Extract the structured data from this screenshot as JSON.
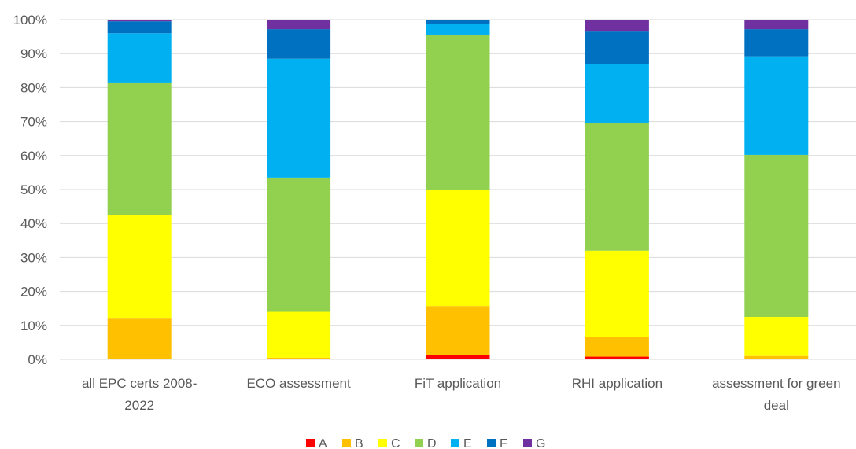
{
  "chart_data": {
    "type": "bar",
    "stacked": true,
    "normalized": true,
    "categories": [
      [
        "all EPC certs 2008-",
        "2022"
      ],
      [
        "ECO assessment"
      ],
      [
        "FiT application"
      ],
      [
        "RHI application"
      ],
      [
        "assessment for green",
        "deal"
      ]
    ],
    "series": [
      {
        "name": "A",
        "color": "#FF0000",
        "values": [
          0.0,
          0.0,
          1.2,
          0.8,
          0.0
        ]
      },
      {
        "name": "B",
        "color": "#FFC000",
        "values": [
          12.0,
          0.5,
          14.5,
          5.7,
          1.0
        ]
      },
      {
        "name": "C",
        "color": "#FFFF00",
        "values": [
          30.5,
          13.5,
          34.2,
          25.5,
          11.5
        ]
      },
      {
        "name": "D",
        "color": "#92D050",
        "values": [
          39.0,
          39.5,
          45.5,
          37.5,
          47.7
        ]
      },
      {
        "name": "E",
        "color": "#00B0F0",
        "values": [
          14.5,
          35.0,
          3.3,
          17.5,
          29.0
        ]
      },
      {
        "name": "F",
        "color": "#0070C0",
        "values": [
          3.5,
          8.7,
          1.3,
          9.5,
          8.0
        ]
      },
      {
        "name": "G",
        "color": "#7030A0",
        "values": [
          0.5,
          2.8,
          0.0,
          3.5,
          2.8
        ]
      }
    ],
    "title": "",
    "xlabel": "",
    "ylabel": "",
    "ylim": [
      0,
      100
    ],
    "yticks": [
      "0%",
      "10%",
      "20%",
      "30%",
      "40%",
      "50%",
      "60%",
      "70%",
      "80%",
      "90%",
      "100%"
    ],
    "grid": true,
    "legend": "bottom"
  }
}
